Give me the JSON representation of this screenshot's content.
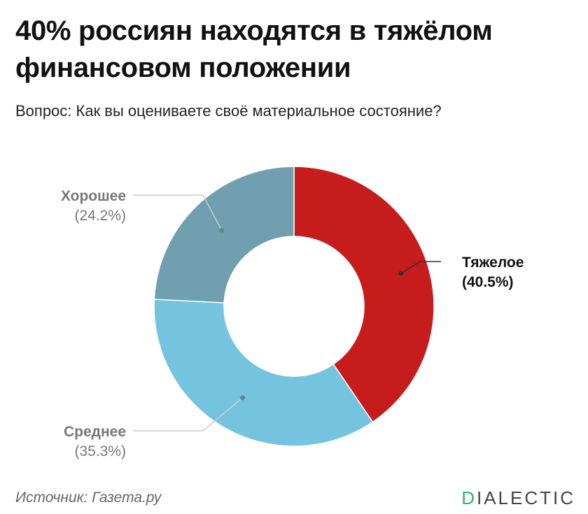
{
  "header": {
    "title": "40% россиян находятся в тяжёлом финансовом положении",
    "subtitle": "Вопрос: Как вы оцениваете своё материальное состояние?"
  },
  "footer": {
    "source": "Источник: Газета.ру",
    "brand_first": "D",
    "brand_rest": "IALECTIC"
  },
  "colors": {
    "brand_accent": "#2fb36b",
    "heavy": "#c61c1c",
    "medium": "#74c3df",
    "good": "#709fb0"
  },
  "chart_data": {
    "type": "donut",
    "slices": [
      {
        "label": "Тяжелое",
        "value": 40.5,
        "value_label": "(40.5%)",
        "color": "#c61c1c",
        "emphasis": true
      },
      {
        "label": "Среднее",
        "value": 35.3,
        "value_label": "(35.3%)",
        "color": "#74c3df",
        "emphasis": false
      },
      {
        "label": "Хорошее",
        "value": 24.2,
        "value_label": "(24.2%)",
        "color": "#709fb0",
        "emphasis": false
      }
    ],
    "start_angle": "12 o'clock",
    "direction": "clockwise"
  }
}
